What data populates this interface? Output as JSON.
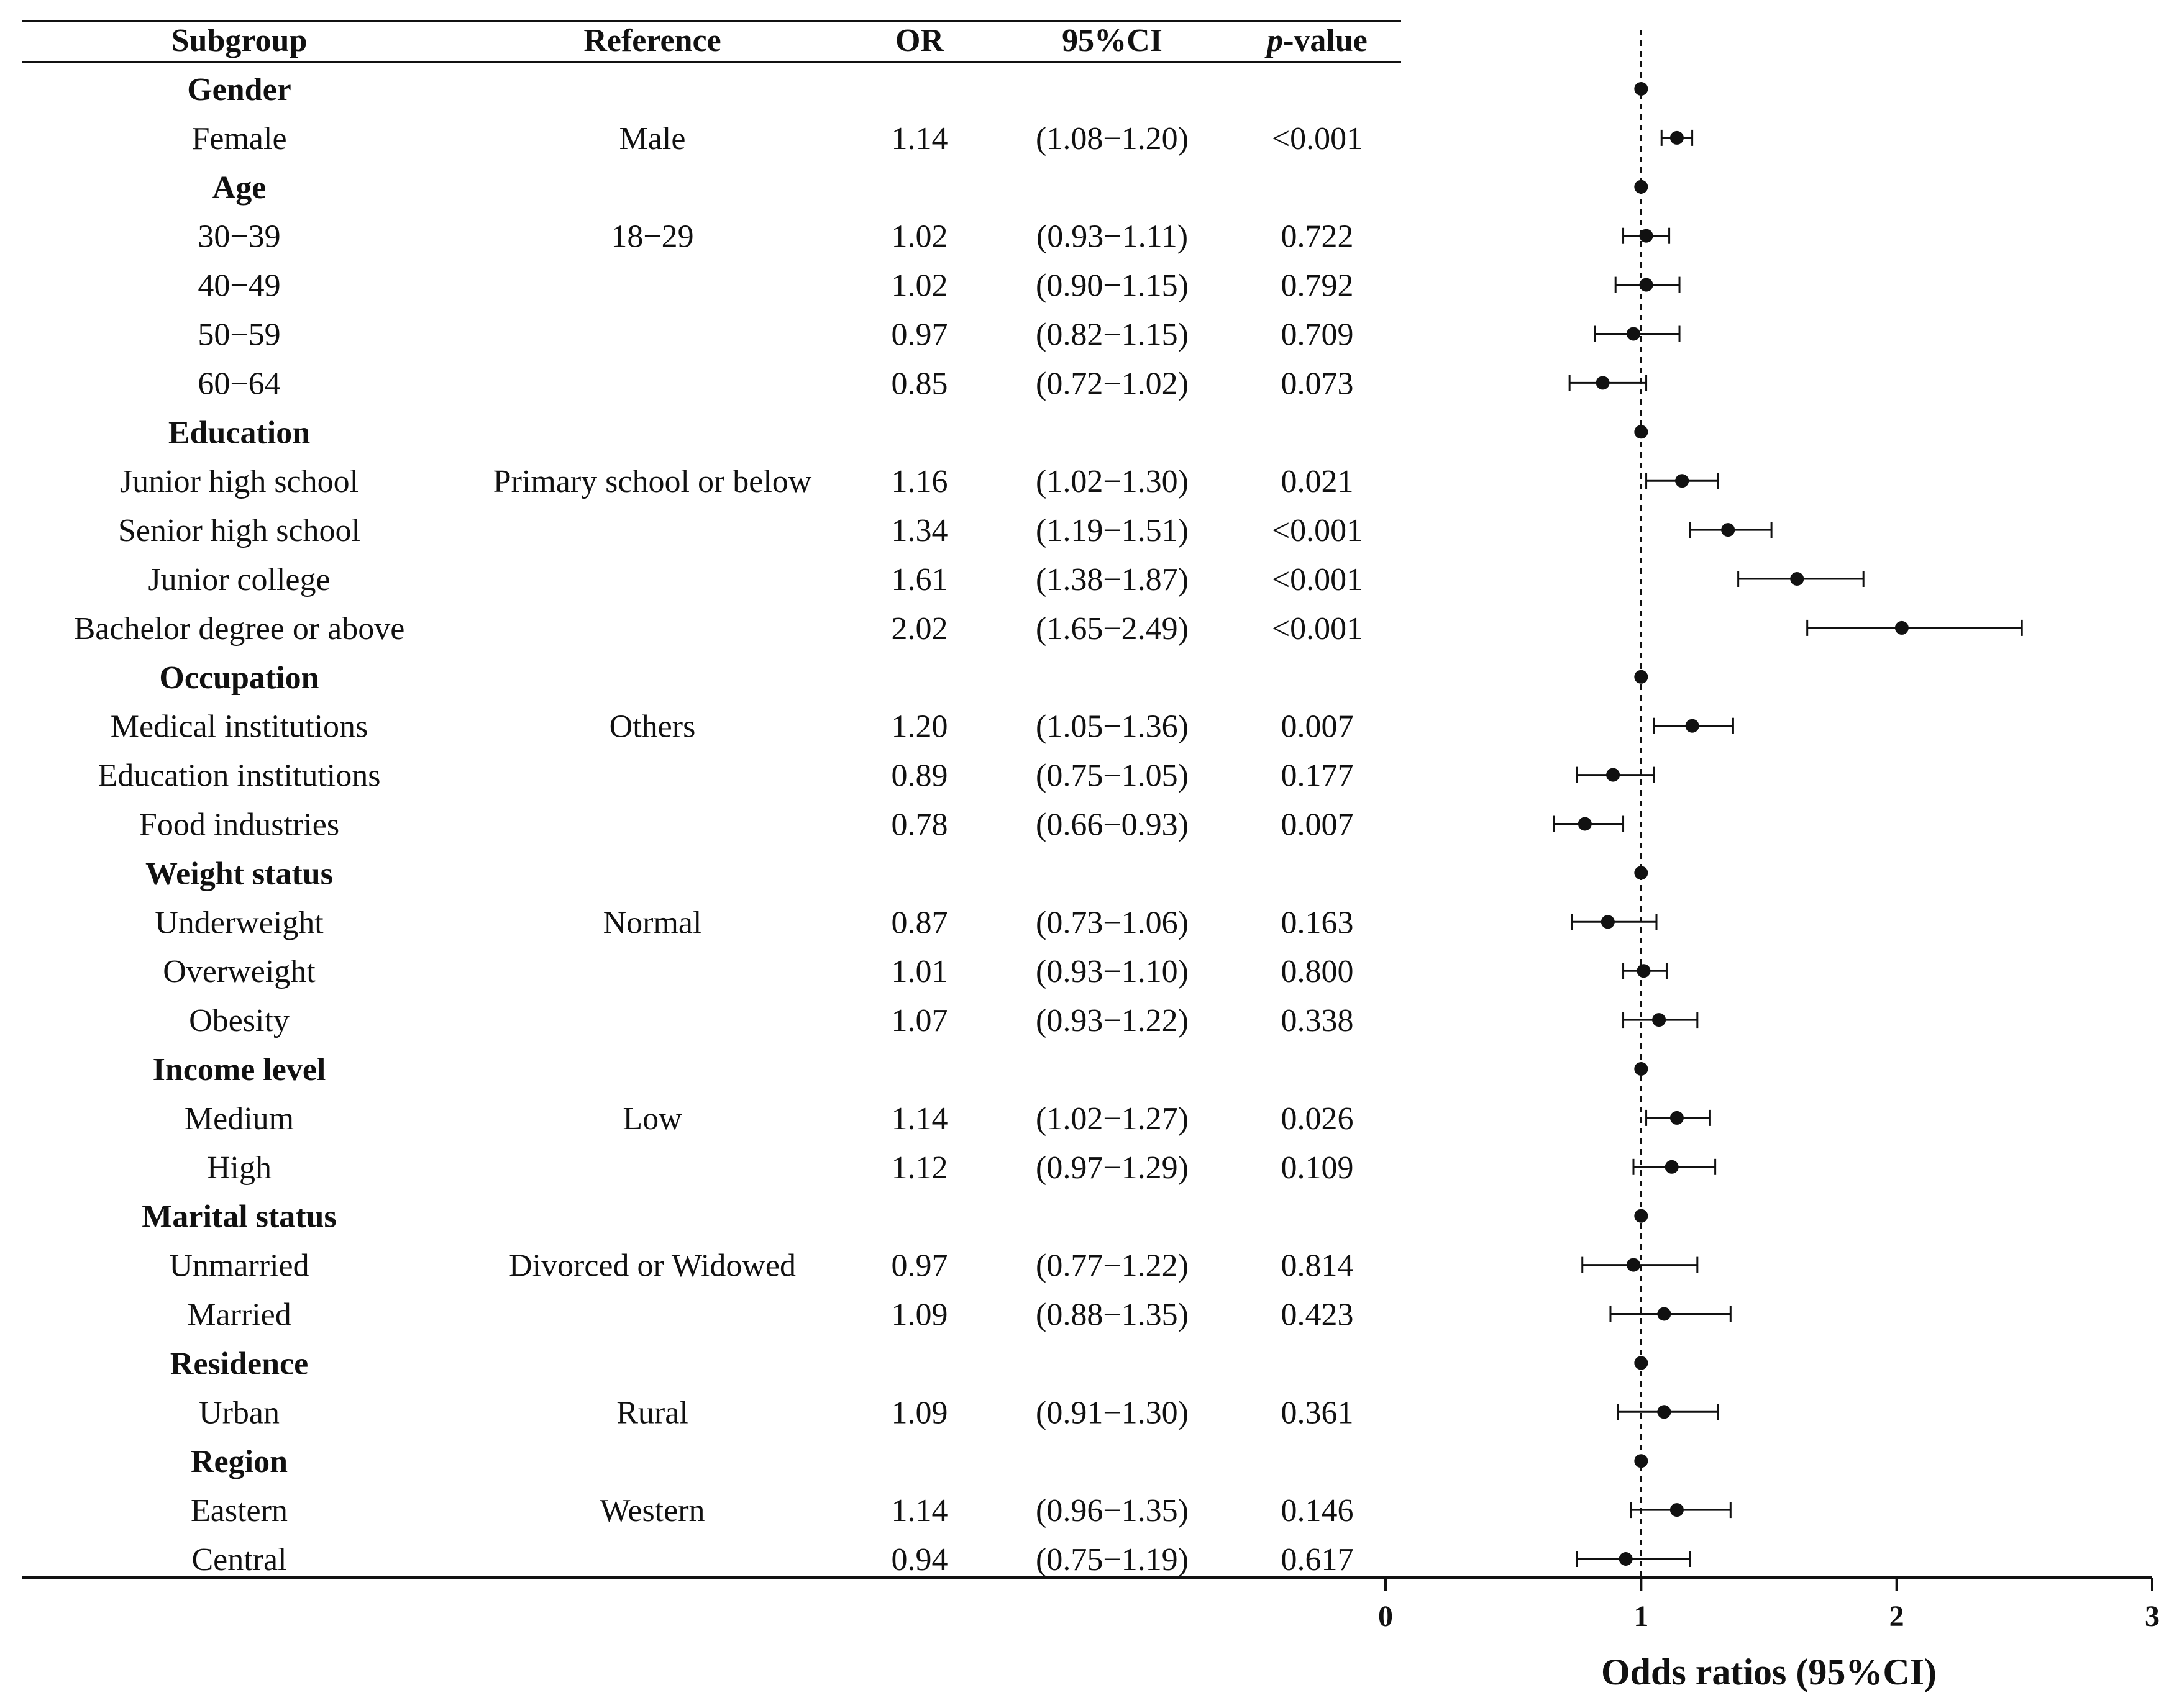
{
  "table": {
    "headers": {
      "subgroup": "Subgroup",
      "reference": "Reference",
      "or": "OR",
      "ci": "95%CI",
      "p_italic": "p",
      "p_rest": "-value"
    }
  },
  "rows": [
    {
      "type": "group",
      "label": "Gender",
      "or": 1.0
    },
    {
      "type": "item",
      "label": "Female",
      "reference": "Male",
      "or_text": "1.14",
      "ci_text": "(1.08−1.20)",
      "p_text": "<0.001",
      "or": 1.14,
      "lo": 1.08,
      "hi": 1.2
    },
    {
      "type": "group",
      "label": "Age",
      "or": 1.0
    },
    {
      "type": "item",
      "label": "30−39",
      "reference": "18−29",
      "or_text": "1.02",
      "ci_text": "(0.93−1.11)",
      "p_text": "0.722",
      "or": 1.02,
      "lo": 0.93,
      "hi": 1.11
    },
    {
      "type": "item",
      "label": "40−49",
      "reference": "",
      "or_text": "1.02",
      "ci_text": "(0.90−1.15)",
      "p_text": "0.792",
      "or": 1.02,
      "lo": 0.9,
      "hi": 1.15
    },
    {
      "type": "item",
      "label": "50−59",
      "reference": "",
      "or_text": "0.97",
      "ci_text": "(0.82−1.15)",
      "p_text": "0.709",
      "or": 0.97,
      "lo": 0.82,
      "hi": 1.15
    },
    {
      "type": "item",
      "label": "60−64",
      "reference": "",
      "or_text": "0.85",
      "ci_text": "(0.72−1.02)",
      "p_text": "0.073",
      "or": 0.85,
      "lo": 0.72,
      "hi": 1.02
    },
    {
      "type": "group",
      "label": "Education",
      "or": 1.0
    },
    {
      "type": "item",
      "label": "Junior high school",
      "reference": "Primary school or below",
      "or_text": "1.16",
      "ci_text": "(1.02−1.30)",
      "p_text": "0.021",
      "or": 1.16,
      "lo": 1.02,
      "hi": 1.3
    },
    {
      "type": "item",
      "label": "Senior high school",
      "reference": "",
      "or_text": "1.34",
      "ci_text": "(1.19−1.51)",
      "p_text": "<0.001",
      "or": 1.34,
      "lo": 1.19,
      "hi": 1.51
    },
    {
      "type": "item",
      "label": "Junior college",
      "reference": "",
      "or_text": "1.61",
      "ci_text": "(1.38−1.87)",
      "p_text": "<0.001",
      "or": 1.61,
      "lo": 1.38,
      "hi": 1.87
    },
    {
      "type": "item",
      "label": "Bachelor degree or above",
      "reference": "",
      "or_text": "2.02",
      "ci_text": "(1.65−2.49)",
      "p_text": "<0.001",
      "or": 2.02,
      "lo": 1.65,
      "hi": 2.49
    },
    {
      "type": "group",
      "label": "Occupation",
      "or": 1.0
    },
    {
      "type": "item",
      "label": "Medical institutions",
      "reference": "Others",
      "or_text": "1.20",
      "ci_text": "(1.05−1.36)",
      "p_text": "0.007",
      "or": 1.2,
      "lo": 1.05,
      "hi": 1.36
    },
    {
      "type": "item",
      "label": "Education institutions",
      "reference": "",
      "or_text": "0.89",
      "ci_text": "(0.75−1.05)",
      "p_text": "0.177",
      "or": 0.89,
      "lo": 0.75,
      "hi": 1.05
    },
    {
      "type": "item",
      "label": "Food industries",
      "reference": "",
      "or_text": "0.78",
      "ci_text": "(0.66−0.93)",
      "p_text": "0.007",
      "or": 0.78,
      "lo": 0.66,
      "hi": 0.93
    },
    {
      "type": "group",
      "label": "Weight status",
      "or": 1.0
    },
    {
      "type": "item",
      "label": "Underweight",
      "reference": "Normal",
      "or_text": "0.87",
      "ci_text": "(0.73−1.06)",
      "p_text": "0.163",
      "or": 0.87,
      "lo": 0.73,
      "hi": 1.06
    },
    {
      "type": "item",
      "label": "Overweight",
      "reference": "",
      "or_text": "1.01",
      "ci_text": "(0.93−1.10)",
      "p_text": "0.800",
      "or": 1.01,
      "lo": 0.93,
      "hi": 1.1
    },
    {
      "type": "item",
      "label": "Obesity",
      "reference": "",
      "or_text": "1.07",
      "ci_text": "(0.93−1.22)",
      "p_text": "0.338",
      "or": 1.07,
      "lo": 0.93,
      "hi": 1.22
    },
    {
      "type": "group",
      "label": "Income level",
      "or": 1.0
    },
    {
      "type": "item",
      "label": "Medium",
      "reference": "Low",
      "or_text": "1.14",
      "ci_text": "(1.02−1.27)",
      "p_text": "0.026",
      "or": 1.14,
      "lo": 1.02,
      "hi": 1.27
    },
    {
      "type": "item",
      "label": "High",
      "reference": "",
      "or_text": "1.12",
      "ci_text": "(0.97−1.29)",
      "p_text": "0.109",
      "or": 1.12,
      "lo": 0.97,
      "hi": 1.29
    },
    {
      "type": "group",
      "label": "Marital status",
      "or": 1.0
    },
    {
      "type": "item",
      "label": "Unmarried",
      "reference": "Divorced or Widowed",
      "or_text": "0.97",
      "ci_text": "(0.77−1.22)",
      "p_text": "0.814",
      "or": 0.97,
      "lo": 0.77,
      "hi": 1.22
    },
    {
      "type": "item",
      "label": "Married",
      "reference": "",
      "or_text": "1.09",
      "ci_text": "(0.88−1.35)",
      "p_text": "0.423",
      "or": 1.09,
      "lo": 0.88,
      "hi": 1.35
    },
    {
      "type": "group",
      "label": "Residence",
      "or": 1.0
    },
    {
      "type": "item",
      "label": "Urban",
      "reference": "Rural",
      "or_text": "1.09",
      "ci_text": "(0.91−1.30)",
      "p_text": "0.361",
      "or": 1.09,
      "lo": 0.91,
      "hi": 1.3
    },
    {
      "type": "group",
      "label": "Region",
      "or": 1.0
    },
    {
      "type": "item",
      "label": "Eastern",
      "reference": "Western",
      "or_text": "1.14",
      "ci_text": "(0.96−1.35)",
      "p_text": "0.146",
      "or": 1.14,
      "lo": 0.96,
      "hi": 1.35
    },
    {
      "type": "item",
      "label": "Central",
      "reference": "",
      "or_text": "0.94",
      "ci_text": "(0.75−1.19)",
      "p_text": "0.617",
      "or": 0.94,
      "lo": 0.75,
      "hi": 1.19
    }
  ],
  "chart_data": {
    "type": "forest",
    "xlabel": "Odds ratios (95%CI)",
    "xlim": [
      0,
      3
    ],
    "xticks": [
      0,
      1,
      2,
      3
    ],
    "reference_line": 1,
    "series": [
      {
        "name": "Odds ratio",
        "values_from": "rows.or",
        "ci_from": [
          "rows.lo",
          "rows.hi"
        ]
      }
    ]
  },
  "colors": {
    "ink": "#111111",
    "background": "#ffffff"
  }
}
